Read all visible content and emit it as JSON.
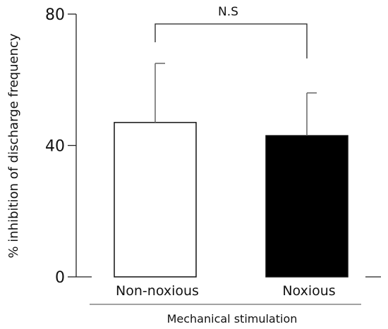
{
  "chart_data": {
    "type": "bar",
    "categories": [
      "Non-noxious",
      "Noxious"
    ],
    "values": [
      47,
      43
    ],
    "error_upper": [
      18,
      13
    ],
    "fill_colors": [
      "#ffffff",
      "#000000"
    ],
    "ylabel": "% inhibition of discharge frequency",
    "group_label": "Mechanical stimulation",
    "ylim": [
      0,
      80
    ],
    "yticks": [
      0,
      40,
      80
    ],
    "yticks_labels": [
      "0",
      "40",
      "80"
    ],
    "grid": false,
    "annotation": {
      "text": "N.S",
      "between": [
        "Non-noxious",
        "Noxious"
      ]
    }
  }
}
